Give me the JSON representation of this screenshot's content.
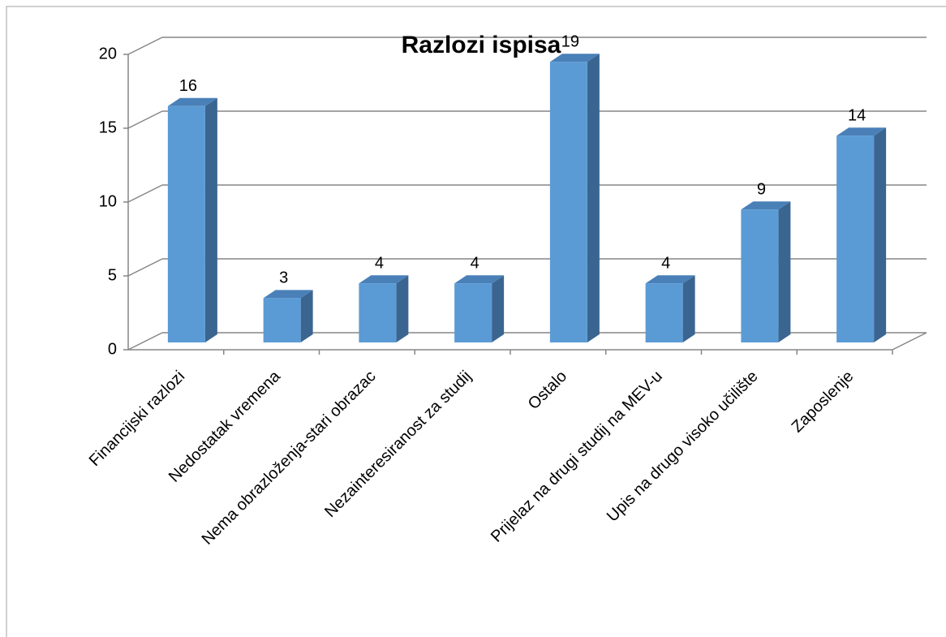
{
  "chart_data": {
    "type": "bar",
    "title": "Razlozi ispisa",
    "categories": [
      "Financijski razlozi",
      "Nedostatak vremena",
      "Nema obrazloženja-stari obrazac",
      "Nezainteresiranost za studij",
      "Ostalo",
      "Prijelaz na drugi studij na MEV-u",
      "Upis na drugo visoko učilište",
      "Zaposlenje"
    ],
    "values": [
      16,
      3,
      4,
      4,
      19,
      4,
      9,
      14
    ],
    "color": "#5b9bd5",
    "ylim": [
      0,
      20
    ],
    "yticks": [
      0,
      5,
      10,
      15,
      20
    ],
    "grid": true
  }
}
